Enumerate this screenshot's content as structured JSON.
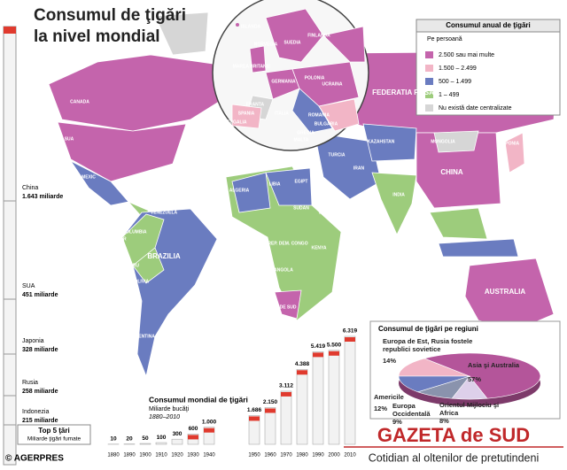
{
  "title": [
    "Consumul de ţigări",
    "la nivel mondial"
  ],
  "legend": {
    "title": "Consumul anual de ţigări",
    "subtitle": "Pe persoană",
    "items": [
      {
        "label": "2.500 sau mai multe",
        "color": "#c464ac"
      },
      {
        "label": "1.500 – 2.499",
        "color": "#f2b5c6"
      },
      {
        "label": "500 – 1.499",
        "color": "#6a7cc0"
      },
      {
        "label": "1 – 499",
        "color": "#9dcc7c"
      },
      {
        "label": "Nu există date centralizate",
        "color": "#d6d6d6"
      }
    ]
  },
  "map_labels": [
    "CANADA",
    "SUA",
    "MEXIC",
    "CUBA",
    "VENEZUELA",
    "COLUMBIA",
    "ECUADOR",
    "PERU",
    "BRAZILIA",
    "BOLIVIA",
    "CHILE",
    "ARGENTINA",
    "ISLANDA",
    "NORVEGIA",
    "SUEDIA",
    "FINLANDA",
    "MAREA BRITANIE",
    "GERMANIA",
    "POLONIA",
    "FRANTA",
    "SPANIA",
    "PORTUGALIA",
    "ITALIA",
    "UCRAINA",
    "ROMANIA",
    "BULGARIA",
    "GRECIA",
    "MALTA",
    "TURCIA",
    "ALGERIA",
    "LIBIA",
    "EGIPT",
    "SUDAN",
    "NIGERIA",
    "ETIOPIA",
    "REP. DEM. CONGO",
    "KENYA",
    "ANGOLA",
    "AFRICA DE SUD",
    "FEDERATIA RUSA",
    "KAZAHSTAN",
    "MONGOLIA",
    "CHINA",
    "JAPONIA",
    "IRAN",
    "INDIA",
    "AUSTRALIA"
  ],
  "top5": {
    "title": "Top 5 ţări",
    "subtitle": "Miliarde ţigări fumate",
    "countries": [
      {
        "name": "China",
        "value": "1.643 miliarde"
      },
      {
        "name": "SUA",
        "value": "451 miliarde"
      },
      {
        "name": "Japonia",
        "value": "328 miliarde"
      },
      {
        "name": "Rusia",
        "value": "258 miliarde"
      },
      {
        "name": "Indonezia",
        "value": "215 miliarde"
      }
    ]
  },
  "chart_data": [
    {
      "type": "bar",
      "title": "Consumul mondial de ţigări",
      "subtitle": "Miliarde bucăţi",
      "period": "1880–2010",
      "categories": [
        "1880",
        "1890",
        "1900",
        "1910",
        "1920",
        "1930",
        "1940",
        "1950",
        "1960",
        "1970",
        "1980",
        "1990",
        "2000",
        "2010"
      ],
      "values": [
        10,
        20,
        50,
        100,
        300,
        600,
        1000,
        1686,
        2150,
        3112,
        4388,
        5419,
        5500,
        6319
      ],
      "value_labels": [
        "10",
        "20",
        "50",
        "100",
        "300",
        "600",
        "1.000",
        "1.686",
        "2.150",
        "3.112",
        "4.388",
        "5.419",
        "5.500",
        "6.319"
      ],
      "color": "#e03a2e"
    },
    {
      "type": "pie",
      "title": "Consumul de ţigări pe regiuni",
      "categories": [
        "Europa de Est, Rusia fostele republici sovietice",
        "Asia şi Australia",
        "Orientul Mijlociu şi Africa",
        "Europa Occidentală",
        "Americile"
      ],
      "values": [
        14,
        57,
        8,
        9,
        12
      ],
      "value_labels": [
        "14%",
        "57%",
        "8%",
        "9%",
        "12%"
      ],
      "colors": [
        "#f2b5c6",
        "#b4559a",
        "#ddd0ea",
        "#8a93ad",
        "#6a7cc0"
      ]
    }
  ],
  "footer": {
    "credit": "© AGERPRES",
    "brand": "GAZETA de SUD",
    "tagline": "Cotidian al oltenilor de pretutindeni"
  }
}
